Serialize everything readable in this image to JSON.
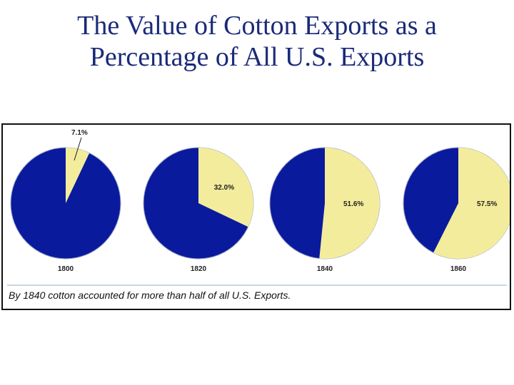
{
  "title_line1": "The Value of Cotton Exports as a",
  "title_line2": "Percentage of All U.S. Exports",
  "caption": "By 1840 cotton accounted for more than half of all U.S. Exports.",
  "colors": {
    "cotton": "#f3ec9c",
    "other": "#0a1a9c",
    "pie_edge": "#9aa4c8"
  },
  "chart_data": {
    "type": "pie",
    "title": "The Value of Cotton Exports as a Percentage of All U.S. Exports",
    "series_name": "Cotton exports (% of all U.S. exports)",
    "pies": [
      {
        "year": "1800",
        "cotton_percent": 7.1,
        "label": "7.1%"
      },
      {
        "year": "1820",
        "cotton_percent": 32.0,
        "label": "32.0%"
      },
      {
        "year": "1840",
        "cotton_percent": 51.6,
        "label": "51.6%"
      },
      {
        "year": "1860",
        "cotton_percent": 57.5,
        "label": "57.5%"
      }
    ]
  }
}
